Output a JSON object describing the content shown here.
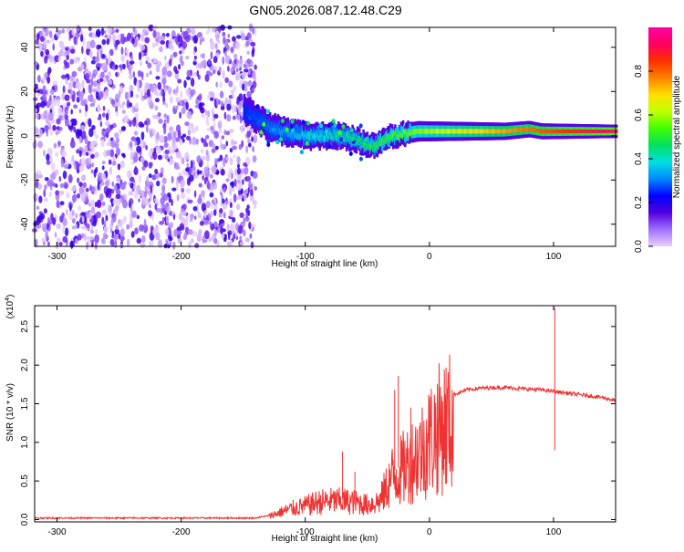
{
  "page_title": "GN05.2026.087.12.48.C29",
  "chart_data": [
    {
      "type": "heatmap",
      "title": "GN05.2026.087.12.48.C29",
      "xlabel": "Height of straight line (km)",
      "ylabel": "Frequency (Hz)",
      "xlim": [
        -318,
        150
      ],
      "ylim": [
        -50,
        49
      ],
      "x_ticks": [
        -300,
        -200,
        -100,
        0,
        100
      ],
      "x_tick_labels": [
        "-300",
        "-200",
        "-100",
        "0",
        "100"
      ],
      "y_ticks": [
        -40,
        -20,
        0,
        20,
        40
      ],
      "y_tick_labels": [
        "-40",
        "-20",
        "0",
        "20",
        "40"
      ],
      "colorbar": {
        "label": "Normalized spectral amplitude",
        "range": [
          0,
          1
        ],
        "ticks": [
          0.0,
          0.2,
          0.4,
          0.6,
          0.8
        ],
        "tick_labels": [
          "0.0",
          "0.2",
          "0.4",
          "0.6",
          "0.8"
        ],
        "colormap": [
          "#e8d0ff",
          "#a070ff",
          "#5000e0",
          "#0000ff",
          "#0088ff",
          "#00e0e0",
          "#00e060",
          "#40ff00",
          "#c0ff00",
          "#ffe000",
          "#ff8000",
          "#ff3000",
          "#ff0060",
          "#ff00a0"
        ]
      },
      "regions": [
        {
          "name": "noise",
          "x_range": [
            -318,
            -140
          ],
          "y_range": [
            -50,
            49
          ],
          "amplitude_range": [
            0.0,
            0.2
          ]
        },
        {
          "name": "signal-track",
          "points": [
            [
              -150,
              12
            ],
            [
              -140,
              8
            ],
            [
              -130,
              4
            ],
            [
              -120,
              2
            ],
            [
              -110,
              1
            ],
            [
              -100,
              0
            ],
            [
              -90,
              0
            ],
            [
              -80,
              0
            ],
            [
              -70,
              0
            ],
            [
              -60,
              -2
            ],
            [
              -50,
              -4
            ],
            [
              -45,
              -5
            ],
            [
              -40,
              -3
            ],
            [
              -30,
              0
            ],
            [
              -20,
              1
            ],
            [
              -10,
              2
            ],
            [
              0,
              2
            ],
            [
              20,
              2
            ],
            [
              40,
              2
            ],
            [
              60,
              2
            ],
            [
              80,
              3
            ],
            [
              90,
              2
            ],
            [
              100,
              2
            ],
            [
              120,
              2
            ],
            [
              150,
              2
            ]
          ],
          "amplitude_start": 0.25,
          "amplitude_end": 0.95
        }
      ],
      "grid": false
    },
    {
      "type": "line",
      "xlabel": "Height of straight line (km)",
      "ylabel": "SNR (10 * v/v)",
      "y_multiplier": "(x10",
      "y_multiplier_exponent": "4",
      "y_multiplier_close": ")",
      "xlim": [
        -318,
        150
      ],
      "ylim": [
        -0.03,
        2.77
      ],
      "x_ticks": [
        -300,
        -200,
        -100,
        0,
        100
      ],
      "x_tick_labels": [
        "-300",
        "-200",
        "-100",
        "0",
        "100"
      ],
      "y_ticks": [
        0.0,
        0.5,
        1.0,
        1.5,
        2.0,
        2.5
      ],
      "y_tick_labels": [
        "0.0",
        "0.5",
        "1.0",
        "1.5",
        "2.0",
        "2.5"
      ],
      "series_color": "#ee3333",
      "envelope": {
        "x": [
          -318,
          -200,
          -140,
          -130,
          -120,
          -110,
          -100,
          -90,
          -80,
          -70,
          -60,
          -50,
          -40,
          -35,
          -30,
          -25,
          -20,
          -15,
          -10,
          -5,
          0,
          5,
          10,
          20,
          30,
          40,
          50,
          60,
          70,
          80,
          90,
          95,
          100,
          105,
          110,
          120,
          130,
          140,
          150
        ],
        "y": [
          0.02,
          0.02,
          0.02,
          0.05,
          0.12,
          0.18,
          0.22,
          0.28,
          0.3,
          0.3,
          0.28,
          0.24,
          0.3,
          0.5,
          0.7,
          0.75,
          0.85,
          0.95,
          1.05,
          1.15,
          1.3,
          1.4,
          1.5,
          1.62,
          1.68,
          1.7,
          1.71,
          1.71,
          1.7,
          1.69,
          1.68,
          1.67,
          1.66,
          1.65,
          1.64,
          1.62,
          1.6,
          1.58,
          1.54
        ]
      },
      "spikes": [
        {
          "x": -70,
          "y": 0.88
        },
        {
          "x": -60,
          "y": 0.62
        },
        {
          "x": -28,
          "y": 1.68
        },
        {
          "x": -25,
          "y": 1.86
        },
        {
          "x": -15,
          "y": 1.45
        },
        {
          "x": 101,
          "y": 2.75
        },
        {
          "x": 101,
          "y": 0.9
        }
      ],
      "grid": false
    }
  ]
}
